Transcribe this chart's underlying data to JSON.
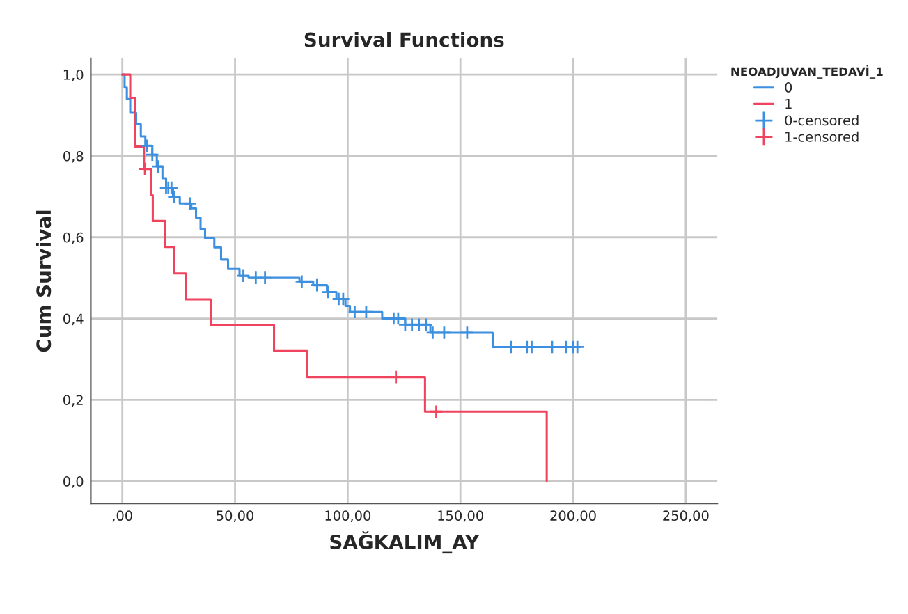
{
  "chart_data": {
    "type": "step",
    "title": "Survival Functions",
    "xlabel": "SAĞKALIM_AY",
    "ylabel": "Cum Survival",
    "legend_title": "NEOADJUVAN_TEDAVİ_1",
    "legend": "top right",
    "grid": true,
    "xlim": [
      -14,
      264
    ],
    "ylim": [
      -0.055,
      1.04
    ],
    "xticks": [
      {
        "value": 0,
        "label": ",00"
      },
      {
        "value": 50,
        "label": "50,00"
      },
      {
        "value": 100,
        "label": "100,00"
      },
      {
        "value": 150,
        "label": "150,00"
      },
      {
        "value": 200,
        "label": "200,00"
      },
      {
        "value": 250,
        "label": "250,00"
      }
    ],
    "yticks": [
      {
        "value": 0,
        "label": "0,0"
      },
      {
        "value": 0.2,
        "label": "0,2"
      },
      {
        "value": 0.4,
        "label": "0,4"
      },
      {
        "value": 0.6,
        "label": "0,6"
      },
      {
        "value": 0.8,
        "label": "0,8"
      },
      {
        "value": 1.0,
        "label": "1,0"
      }
    ],
    "series": [
      {
        "name": "0",
        "color": "#3d8fe0",
        "x": [
          0,
          1,
          2,
          3.5,
          6.1,
          8.2,
          10.2,
          13.3,
          15.3,
          17.8,
          19.4,
          22.5,
          25.5,
          30.6,
          32.7,
          34.7,
          36.7,
          40.8,
          43.8,
          46.9,
          52,
          56,
          78.6,
          84.7,
          90.8,
          95,
          99,
          101,
          115.3,
          125.5,
          136.7,
          164.3,
          203
        ],
        "values": [
          1.0,
          0.968,
          0.94,
          0.906,
          0.878,
          0.848,
          0.825,
          0.803,
          0.774,
          0.745,
          0.722,
          0.699,
          0.683,
          0.671,
          0.648,
          0.62,
          0.597,
          0.575,
          0.545,
          0.522,
          0.505,
          0.5,
          0.491,
          0.482,
          0.465,
          0.448,
          0.431,
          0.416,
          0.4,
          0.385,
          0.365,
          0.33,
          0.33
        ]
      },
      {
        "name": "1",
        "color": "#f0435d",
        "x": [
          0,
          3.5,
          5.7,
          9.6,
          12.9,
          13.5,
          19,
          23,
          28.2,
          39.2,
          67.3,
          82,
          134.3,
          188.3
        ],
        "values": [
          1.0,
          0.943,
          0.823,
          0.768,
          0.703,
          0.64,
          0.576,
          0.511,
          0.447,
          0.384,
          0.32,
          0.256,
          0.171,
          0.0
        ]
      },
      {
        "name": "0-censored",
        "type": "scatter",
        "marker": "cross",
        "color": "#3d8fe0",
        "x": [
          10.8,
          13.3,
          15.8,
          19.4,
          20.4,
          21.8,
          23,
          30,
          53.7,
          59.2,
          63.3,
          79.6,
          86.4,
          91.3,
          96,
          98,
          103.1,
          108.2,
          120.4,
          122.4,
          125.5,
          128.5,
          131.6,
          134.7,
          137.7,
          142.8,
          153,
          172.4,
          179.5,
          181.6,
          190.7,
          196.8,
          199.9,
          201.9
        ],
        "values": [
          0.825,
          0.803,
          0.774,
          0.722,
          0.722,
          0.722,
          0.699,
          0.683,
          0.505,
          0.5,
          0.5,
          0.491,
          0.482,
          0.465,
          0.448,
          0.448,
          0.416,
          0.416,
          0.4,
          0.4,
          0.385,
          0.385,
          0.385,
          0.385,
          0.365,
          0.365,
          0.365,
          0.33,
          0.33,
          0.33,
          0.33,
          0.33,
          0.33,
          0.33
        ]
      },
      {
        "name": "1-censored",
        "type": "scatter",
        "marker": "cross",
        "color": "#f0435d",
        "x": [
          10,
          121.4,
          139.3
        ],
        "values": [
          0.768,
          0.256,
          0.171
        ]
      }
    ]
  }
}
